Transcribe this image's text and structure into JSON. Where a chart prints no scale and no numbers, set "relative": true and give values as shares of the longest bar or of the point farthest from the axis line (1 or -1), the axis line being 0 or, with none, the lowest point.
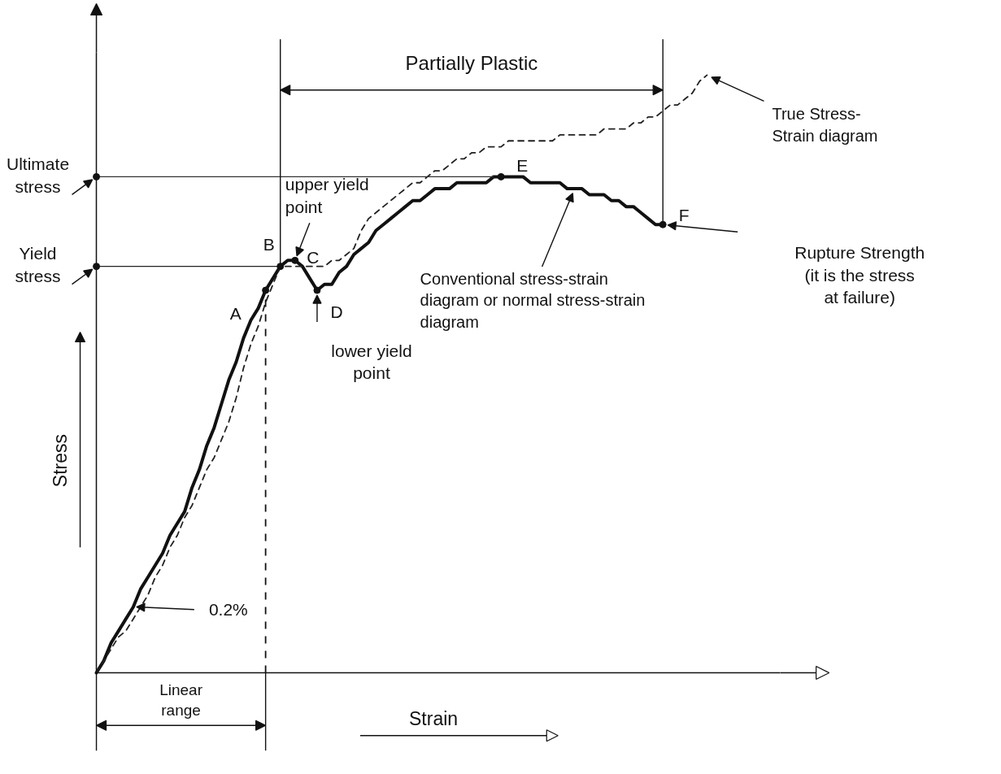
{
  "chart_data": {
    "type": "line",
    "relative": true,
    "xlabel": "Strain",
    "ylabel": "Stress",
    "categories": [
      null,
      null,
      null,
      null,
      null,
      null,
      null,
      null,
      null,
      null,
      null,
      null,
      null,
      null,
      null,
      null,
      null,
      null,
      null,
      null,
      null,
      null,
      null,
      null,
      null,
      null,
      null,
      null,
      null,
      null,
      null,
      null,
      null,
      null,
      null,
      null,
      null,
      null,
      null,
      null,
      null,
      null,
      null,
      null,
      null,
      null,
      null,
      null,
      null,
      null,
      null,
      null,
      null,
      null,
      null,
      null,
      null,
      null,
      null,
      null,
      null,
      null,
      null,
      null,
      null,
      null,
      null,
      null,
      null,
      null,
      null,
      null,
      null,
      null,
      null,
      null,
      null,
      null,
      null,
      null,
      null,
      null,
      null,
      null
    ],
    "series": [
      {
        "name": "Conventional stress-strain diagram or normal stress-strain diagram",
        "color": "#111111",
        "line_style": "solid",
        "values": [
          0,
          0.02,
          0.05,
          0.07,
          0.09,
          0.11,
          0.14,
          0.16,
          0.18,
          0.2,
          0.23,
          0.25,
          0.27,
          0.31,
          0.34,
          0.38,
          0.41,
          0.45,
          0.49,
          0.52,
          0.56,
          0.59,
          0.61,
          0.64,
          0.66,
          0.68,
          0.69,
          0.69,
          0.68,
          0.66,
          0.64,
          0.65,
          0.65,
          0.67,
          0.68,
          0.7,
          0.71,
          0.72,
          0.74,
          0.75,
          0.76,
          0.77,
          0.78,
          0.79,
          0.79,
          0.8,
          0.81,
          0.81,
          0.81,
          0.82,
          0.82,
          0.82,
          0.82,
          0.82,
          0.83,
          0.83,
          0.83,
          0.83,
          0.83,
          0.82,
          0.82,
          0.82,
          0.82,
          0.82,
          0.81,
          0.81,
          0.81,
          0.8,
          0.8,
          0.8,
          0.79,
          0.79,
          0.78,
          0.78,
          0.77,
          0.76,
          0.75,
          0.75,
          null,
          null,
          null,
          null,
          null,
          null
        ]
      },
      {
        "name": "True Stress-Strain diagram",
        "color": "#222222",
        "line_style": "dashed",
        "values": [
          0,
          0.02,
          0.04,
          0.06,
          0.07,
          0.09,
          0.11,
          0.13,
          0.16,
          0.18,
          0.21,
          0.23,
          0.26,
          0.28,
          0.31,
          0.34,
          0.36,
          0.39,
          0.42,
          0.46,
          0.51,
          0.55,
          0.58,
          0.62,
          0.65,
          0.68,
          0.68,
          0.68,
          0.68,
          0.68,
          0.68,
          0.68,
          0.69,
          0.69,
          0.7,
          0.71,
          0.74,
          0.76,
          0.77,
          0.78,
          0.79,
          0.8,
          0.81,
          0.82,
          0.82,
          0.83,
          0.84,
          0.84,
          0.85,
          0.86,
          0.86,
          0.87,
          0.87,
          0.88,
          0.88,
          0.88,
          0.89,
          0.89,
          0.89,
          0.89,
          0.89,
          0.89,
          0.89,
          0.9,
          0.9,
          0.9,
          0.9,
          0.9,
          0.9,
          0.91,
          0.91,
          0.91,
          0.91,
          0.92,
          0.92,
          0.93,
          0.93,
          0.94,
          0.95,
          0.95,
          0.96,
          0.97,
          0.99,
          1.0
        ]
      }
    ],
    "ref_lines": [
      {
        "axis": "y",
        "value": 0.83,
        "label": "Ultimate stress",
        "color": "#333333"
      },
      {
        "axis": "y",
        "value": 0.68,
        "label": "Yield stress",
        "color": "#222222"
      }
    ],
    "annotations": [
      "A",
      "B",
      "C",
      "D",
      "E",
      "F",
      "upper yield point",
      "lower yield point",
      "Rupture Strength (it is the stress at failure)",
      "0.2%",
      "Partially Plastic",
      "Linear range"
    ]
  }
}
